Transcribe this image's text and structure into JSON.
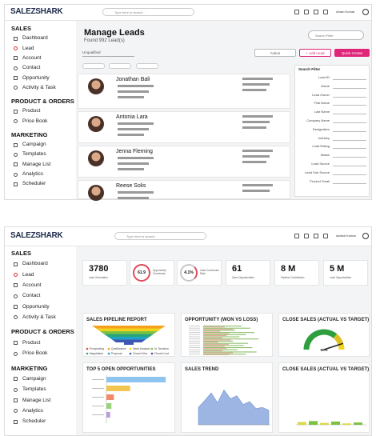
{
  "leads_page": {
    "logo": "SALEZSHARK",
    "search": "Type here to search...",
    "user": "Aman Kumar",
    "sidebar": [
      {
        "title": "SALES",
        "items": [
          "Dashboard",
          "Lead",
          "Account",
          "Contact",
          "Opportunity",
          "Activity & Task"
        ]
      },
      {
        "title": "PRODUCT & ORDERS",
        "items": [
          "Product",
          "Price Book"
        ]
      },
      {
        "title": "MARKETING",
        "items": [
          "Campaign",
          "Templates",
          "Manage List",
          "Analytics",
          "Scheduler"
        ]
      }
    ],
    "title": "Manage Leads",
    "count": "Found 992 Lead(s)",
    "filter_pill": "Search Filter",
    "view_select": "Unqualified",
    "buttons": [
      "Action",
      "+ Add Lead",
      "Quick Create"
    ],
    "leads": [
      "Jonathan Bali",
      "Antonia Lara",
      "Jenna Fleming",
      "Reese Solis"
    ],
    "filter": {
      "title": "Search Filter",
      "fields": [
        "Lead ID",
        "Name",
        "Lead Owner",
        "First Name",
        "Last Name",
        "Company Name",
        "Designation",
        "Industry",
        "Lead Rating",
        "Status",
        "Lead Source",
        "Lead Sub Source",
        "Product Small"
      ]
    }
  },
  "dashboard": {
    "logo": "SALEZSHARK",
    "search": "Type here to search...",
    "user": "Ashish Kumar",
    "sidebar": [
      {
        "title": "SALES",
        "items": [
          "Dashboard",
          "Lead",
          "Account",
          "Contact",
          "Opportunity",
          "Activity & Task"
        ]
      },
      {
        "title": "PRODUCT & ORDERS",
        "items": [
          "Product",
          "Price Book"
        ]
      },
      {
        "title": "MARKETING",
        "items": [
          "Campaign",
          "Templates",
          "Manage List",
          "Analytics",
          "Scheduler"
        ]
      }
    ],
    "kpis": [
      {
        "value": "3780",
        "label": "Lead Generation"
      },
      {
        "value": "61.9",
        "label": "Opportunity Conversion"
      },
      {
        "value": "4.1%",
        "label": "Lead Conversion Rate"
      },
      {
        "value": "61",
        "label": "Open Opportunities"
      },
      {
        "value": "8 M",
        "label": "Pipeline Contribution"
      },
      {
        "value": "5 M",
        "label": "Lead Opportunities"
      }
    ],
    "pipeline": {
      "title": "SALES PIPELINE REPORT",
      "legend": [
        {
          "name": "Prospecting",
          "color": "#e8453c"
        },
        {
          "name": "Qualification",
          "color": "#f4a21c"
        },
        {
          "name": "Need Analysis",
          "color": "#f2d21b"
        },
        {
          "name": "Id. Decision",
          "color": "#7cc242"
        },
        {
          "name": "Negotiation",
          "color": "#2aa57a"
        },
        {
          "name": "Proposal",
          "color": "#23a0c8"
        },
        {
          "name": "Closed Won",
          "color": "#3e57b4"
        },
        {
          "name": "Closed Lost",
          "color": "#5b3fa8"
        }
      ]
    },
    "won_loss": {
      "title": "OPPORTUNITY (WON VS LOSS)",
      "xlim": [
        0,
        30
      ],
      "series": [
        {
          "color": "#8dbf6a",
          "values": [
            18,
            22,
            15,
            24,
            20,
            17,
            26,
            14,
            21,
            19,
            23,
            16,
            25,
            20
          ]
        },
        {
          "color": "#e7a99b",
          "values": [
            10,
            14,
            8,
            12,
            11,
            9,
            13,
            7,
            12,
            10,
            11,
            9,
            14,
            12
          ]
        }
      ]
    },
    "gauge": {
      "title": "CLOSE SALES (ACTUAL VS TARGET)",
      "value": 90,
      "label": "90%"
    },
    "top5": {
      "title": "TOP 5 OPEN OPPORTUNITIES",
      "xlim": [
        0,
        100
      ],
      "values": [
        95,
        38,
        12,
        8,
        6
      ],
      "colors": [
        "#8ec5ee",
        "#f3c553",
        "#f08a6b",
        "#9bd17a",
        "#b99be0"
      ]
    },
    "trend": {
      "title": "SALES TREND",
      "ylim": [
        0,
        80
      ],
      "values": [
        30,
        42,
        55,
        38,
        60,
        45,
        50,
        35,
        40,
        28,
        30,
        25
      ],
      "color": "#9db5e3"
    },
    "close2": {
      "title": "CLOSE SALES (ACTUAL VS TARGET)",
      "ylim": [
        0,
        100
      ],
      "values": [
        6,
        8,
        4,
        7,
        3,
        5
      ],
      "color": "#d9d94a"
    }
  }
}
